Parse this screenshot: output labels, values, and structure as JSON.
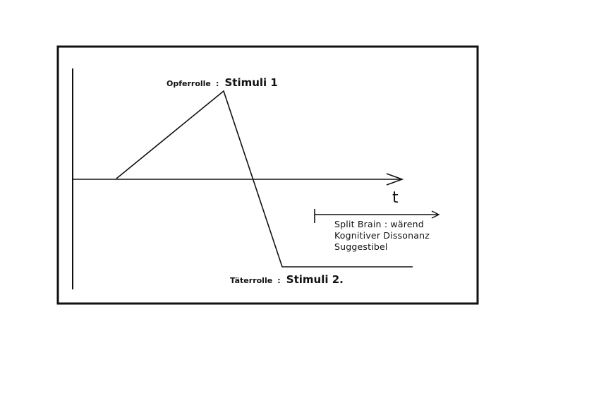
{
  "diagram": {
    "peak_label": {
      "role": "Opferrolle",
      "separator": ":",
      "stimulus": "Stimuli 1"
    },
    "trough_label": {
      "role": "Täterrolle",
      "separator": ":",
      "stimulus": "Stimuli 2."
    },
    "time_axis_label": "t",
    "note_lines": [
      "Split Brain : wärend",
      "Kognitiver Dissonanz",
      "Suggestibel"
    ],
    "colors": {
      "ink": "#111111",
      "background": "#ffffff"
    }
  }
}
